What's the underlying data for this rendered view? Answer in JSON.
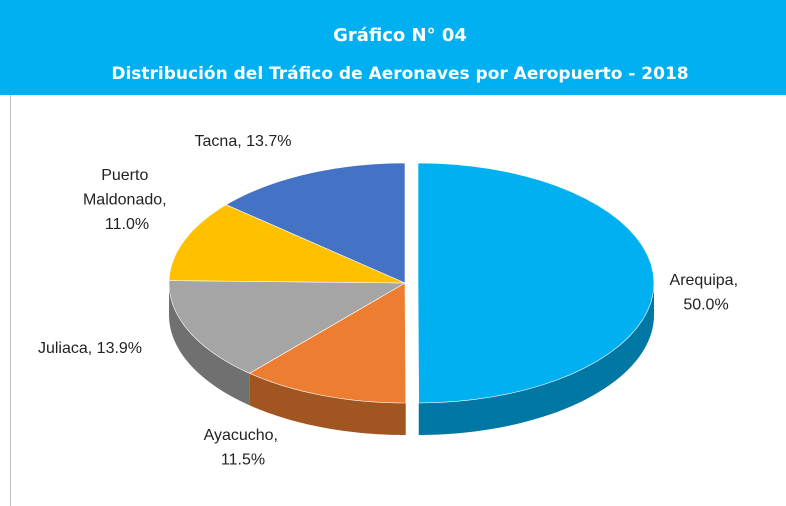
{
  "chart_data": {
    "type": "pie3d",
    "title": "Gráfico N° 04",
    "subtitle": "Distribución del Tráfico de Aeronaves por Aeropuerto - 2018",
    "values": [
      50.0,
      11.5,
      13.9,
      11.0,
      13.7
    ],
    "value_labels": [
      "Arequipa, 50.0%",
      "Ayacucho, 11.5%",
      "Juliaca, 13.9%",
      "Puerto Maldonado, 11.0%",
      "Tacna, 13.7%"
    ],
    "colors": [
      "#00b0f0",
      "#ed7d31",
      "#a5a5a5",
      "#ffc000",
      "#4472c4"
    ],
    "exploded": [
      true,
      false,
      false,
      false,
      false
    ]
  }
}
